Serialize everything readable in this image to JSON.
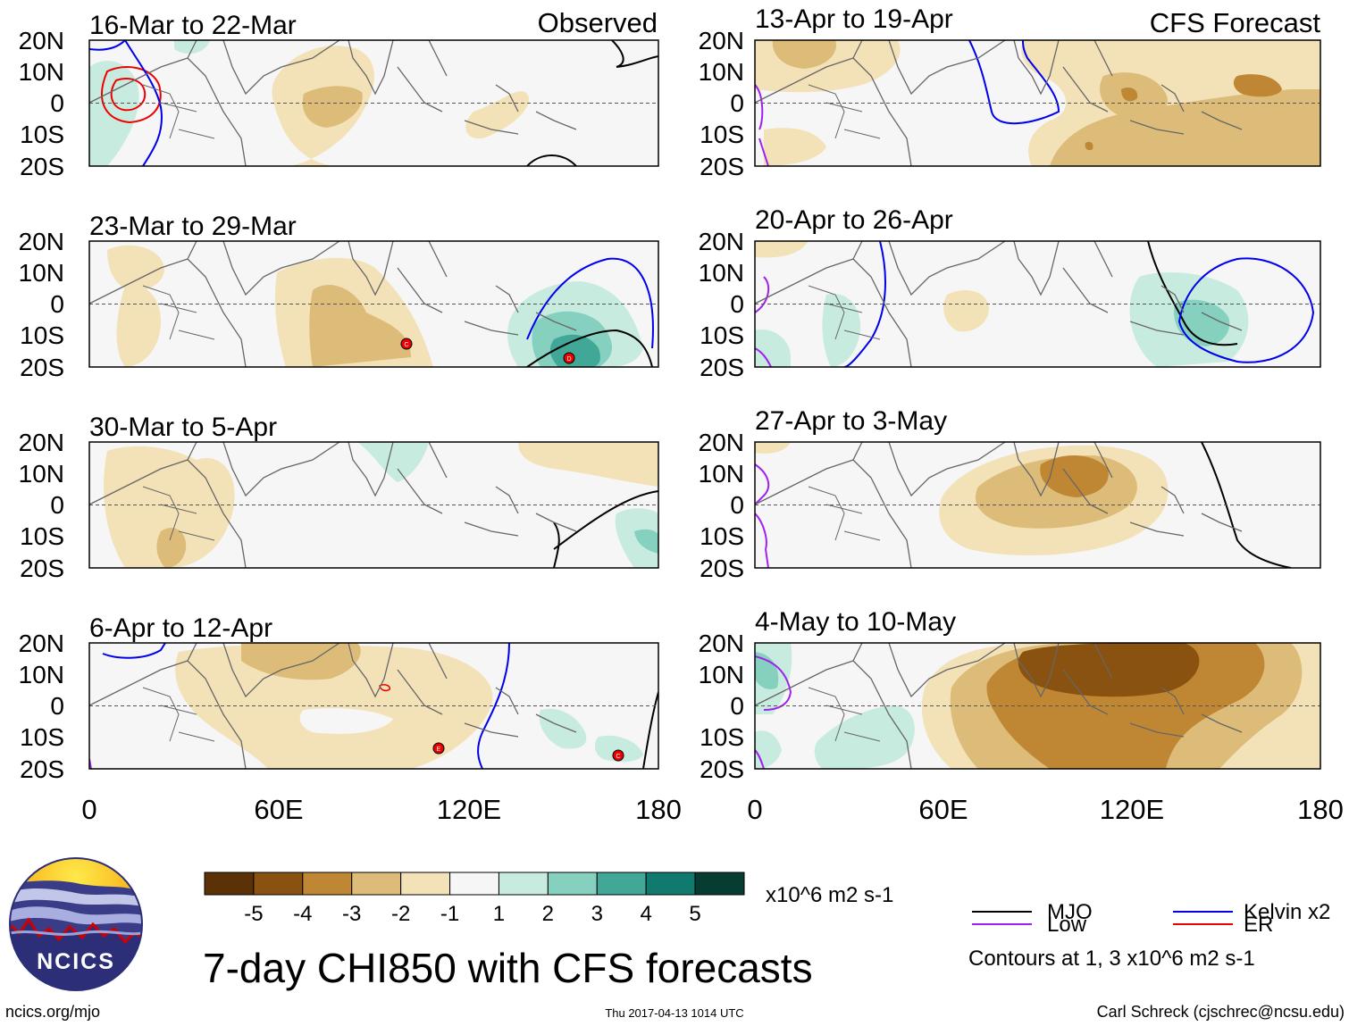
{
  "title": "7-day CHI850 with CFS forecasts",
  "header_left": "Observed",
  "header_right": "CFS Forecast",
  "panels": [
    {
      "col": 0,
      "row": 0,
      "label": "16-Mar to 22-Mar"
    },
    {
      "col": 0,
      "row": 1,
      "label": "23-Mar to 29-Mar"
    },
    {
      "col": 0,
      "row": 2,
      "label": "30-Mar to 5-Apr"
    },
    {
      "col": 0,
      "row": 3,
      "label": "6-Apr to 12-Apr"
    },
    {
      "col": 1,
      "row": 0,
      "label": "13-Apr to 19-Apr"
    },
    {
      "col": 1,
      "row": 1,
      "label": "20-Apr to 26-Apr"
    },
    {
      "col": 1,
      "row": 2,
      "label": "27-Apr to 3-May"
    },
    {
      "col": 1,
      "row": 3,
      "label": "4-May to 10-May"
    }
  ],
  "lat_labels": [
    "20N",
    "10N",
    "0",
    "10S",
    "20S"
  ],
  "lon_labels": [
    "0",
    "60E",
    "120E",
    "180"
  ],
  "colorbar": {
    "colors": [
      "#5a3205",
      "#8a5210",
      "#bf8734",
      "#dcbc78",
      "#f3e2b8",
      "#f6f6f6",
      "#c8ebe0",
      "#86d0c0",
      "#41a898",
      "#0f7a6d",
      "#073c33"
    ],
    "tick_labels": [
      "-5",
      "-4",
      "-3",
      "-2",
      "-1",
      "1",
      "2",
      "3",
      "4",
      "5"
    ],
    "units": "x10^6 m2 s-1"
  },
  "legend": {
    "items": [
      {
        "label": "MJO",
        "color": "#000000"
      },
      {
        "label": "Kelvin x2",
        "color": "#0000ee"
      },
      {
        "label": "Low",
        "color": "#a020f0"
      },
      {
        "label": "ER",
        "color": "#ee0000"
      }
    ],
    "note": "Contours at 1, 3 x10^6 m2 s-1"
  },
  "logo_text": "NCICS",
  "footer_left": "ncics.org/mjo",
  "footer_center": "Thu 2017-04-13 1014 UTC",
  "footer_right": "Carl Schreck (cjschrec@ncsu.edu)"
}
